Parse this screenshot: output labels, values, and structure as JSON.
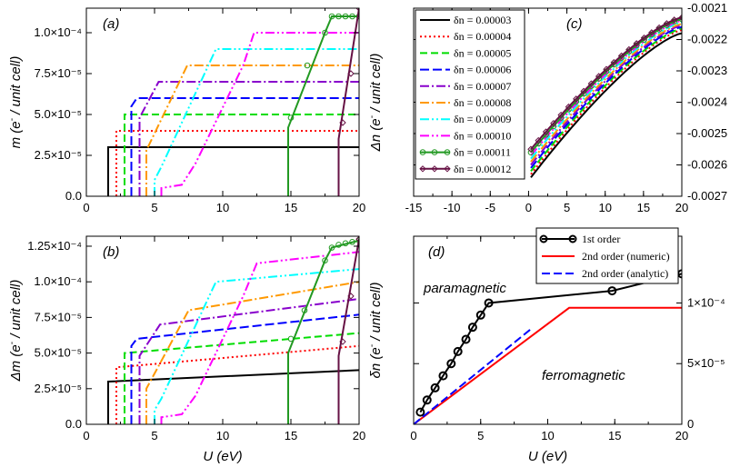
{
  "figure": {
    "series_colors": [
      "#000000",
      "#ff0000",
      "#00dd00",
      "#0000ff",
      "#8800cc",
      "#ff9900",
      "#00ffff",
      "#ff00ff",
      "#229922",
      "#661144"
    ],
    "series_dash": [
      "",
      "2,3",
      "8,4",
      "10,4",
      "10,3,2,3",
      "10,3,2,3",
      "10,3,2,3,2,3",
      "10,3,2,3,2,3",
      "",
      ""
    ]
  },
  "chart_data": [
    {
      "id": "a",
      "type": "line",
      "panel_label": "(a)",
      "xlabel": "",
      "ylabel_main": "m",
      "ylabel_unit": "(e",
      "ylabel_sup": "-",
      "ylabel_rest": " / unit cell)",
      "xlim": [
        0,
        20
      ],
      "ylim": [
        0,
        0.000115
      ],
      "xticks": [
        {
          "v": 0,
          "t": "0"
        },
        {
          "v": 5,
          "t": "5"
        },
        {
          "v": 10,
          "t": "10"
        },
        {
          "v": 15,
          "t": "15"
        },
        {
          "v": 20,
          "t": "20"
        }
      ],
      "yticks": [
        {
          "v": 0,
          "t": "0.0"
        },
        {
          "v": 2.5e-05,
          "t": "2.5×10⁻⁵"
        },
        {
          "v": 5e-05,
          "t": "5.0×10⁻⁵"
        },
        {
          "v": 7.5e-05,
          "t": "7.5×10⁻⁵"
        },
        {
          "v": 0.0001,
          "t": "1.0×10⁻⁴"
        }
      ],
      "series": [
        {
          "name": "δn = 0.00003",
          "points": [
            [
              1.6,
              0
            ],
            [
              1.6,
              3e-05
            ],
            [
              20,
              3e-05
            ]
          ]
        },
        {
          "name": "δn = 0.00004",
          "points": [
            [
              2.2,
              0
            ],
            [
              2.2,
              4e-05
            ],
            [
              20,
              4e-05
            ]
          ]
        },
        {
          "name": "δn = 0.00005",
          "points": [
            [
              2.8,
              0
            ],
            [
              2.8,
              5e-05
            ],
            [
              20,
              5e-05
            ]
          ]
        },
        {
          "name": "δn = 0.00006",
          "points": [
            [
              3.3,
              0
            ],
            [
              3.3,
              5.5e-05
            ],
            [
              3.7,
              6e-05
            ],
            [
              20,
              6e-05
            ]
          ]
        },
        {
          "name": "δn = 0.00007",
          "points": [
            [
              3.9,
              0
            ],
            [
              3.9,
              4.8e-05
            ],
            [
              5.3,
              7e-05
            ],
            [
              20,
              7e-05
            ]
          ]
        },
        {
          "name": "δn = 0.00008",
          "points": [
            [
              4.4,
              0
            ],
            [
              4.4,
              2.8e-05
            ],
            [
              7.4,
              8e-05
            ],
            [
              20,
              8e-05
            ]
          ]
        },
        {
          "name": "δn = 0.00009",
          "points": [
            [
              5.0,
              0
            ],
            [
              5.0,
              1e-05
            ],
            [
              5.5,
              1.8e-05
            ],
            [
              9.5,
              9e-05
            ],
            [
              20,
              9e-05
            ]
          ]
        },
        {
          "name": "δn = 0.00010",
          "points": [
            [
              5.5,
              0
            ],
            [
              5.5,
              5e-06
            ],
            [
              7.0,
              7e-06
            ],
            [
              8.0,
              2e-05
            ],
            [
              11.5,
              8e-05
            ],
            [
              12.3,
              0.0001
            ],
            [
              20,
              0.0001
            ]
          ]
        },
        {
          "name": "δn = 0.00011",
          "marker": "circle",
          "markers": [
            [
              15,
              4.8e-05
            ],
            [
              16.2,
              8e-05
            ],
            [
              17.5,
              0.0001
            ],
            [
              18,
              0.00011
            ],
            [
              18.5,
              0.00011
            ],
            [
              19,
              0.00011
            ],
            [
              19.5,
              0.00011
            ],
            [
              20,
              0.00011
            ]
          ],
          "points": [
            [
              14.8,
              0
            ],
            [
              14.8,
              4.2e-05
            ],
            [
              17.5,
              0.0001
            ],
            [
              18,
              0.00011
            ],
            [
              20,
              0.00011
            ]
          ]
        },
        {
          "name": "δn = 0.00012",
          "marker": "diamond",
          "markers": [
            [
              18.8,
              4.5e-05
            ],
            [
              19.4,
              7.5e-05
            ],
            [
              20,
              0.000115
            ]
          ],
          "points": [
            [
              18.5,
              0
            ],
            [
              18.5,
              3.5e-05
            ],
            [
              20,
              0.000115
            ]
          ]
        }
      ]
    },
    {
      "id": "b",
      "type": "line",
      "panel_label": "(b)",
      "xlabel": "U (eV)",
      "ylabel_main": "Δm",
      "ylabel_unit": "(e",
      "ylabel_sup": "-",
      "ylabel_rest": " / unit cell)",
      "xlim": [
        0,
        20
      ],
      "ylim": [
        0,
        0.000132
      ],
      "xticks": [
        {
          "v": 0,
          "t": "0"
        },
        {
          "v": 5,
          "t": "5"
        },
        {
          "v": 10,
          "t": "10"
        },
        {
          "v": 15,
          "t": "15"
        },
        {
          "v": 20,
          "t": "20"
        }
      ],
      "yticks": [
        {
          "v": 0,
          "t": "0.0"
        },
        {
          "v": 2.5e-05,
          "t": "2.5×10⁻⁵"
        },
        {
          "v": 5e-05,
          "t": "5.0×10⁻⁵"
        },
        {
          "v": 7.5e-05,
          "t": "7.5×10⁻⁵"
        },
        {
          "v": 0.0001,
          "t": "1.0×10⁻⁴"
        },
        {
          "v": 0.000125,
          "t": "1.25×10⁻⁴"
        }
      ],
      "series": [
        {
          "name": "δn = 0.00003",
          "points": [
            [
              1.6,
              0
            ],
            [
              1.6,
              3e-05
            ],
            [
              20,
              3.8e-05
            ]
          ]
        },
        {
          "name": "δn = 0.00004",
          "points": [
            [
              2.2,
              0
            ],
            [
              2.2,
              4e-05
            ],
            [
              20,
              5.5e-05
            ]
          ]
        },
        {
          "name": "δn = 0.00005",
          "points": [
            [
              2.8,
              0
            ],
            [
              2.8,
              5e-05
            ],
            [
              20,
              6.4e-05
            ]
          ]
        },
        {
          "name": "δn = 0.00006",
          "points": [
            [
              3.3,
              0
            ],
            [
              3.3,
              5.5e-05
            ],
            [
              3.7,
              6e-05
            ],
            [
              20,
              7.7e-05
            ]
          ]
        },
        {
          "name": "δn = 0.00007",
          "points": [
            [
              3.9,
              0
            ],
            [
              3.9,
              4.8e-05
            ],
            [
              5.4,
              7e-05
            ],
            [
              20,
              8.8e-05
            ]
          ]
        },
        {
          "name": "δn = 0.00008",
          "points": [
            [
              4.4,
              0
            ],
            [
              4.4,
              2.5e-05
            ],
            [
              7.5,
              8e-05
            ],
            [
              20,
              0.0001
            ]
          ]
        },
        {
          "name": "δn = 0.00009",
          "points": [
            [
              5.0,
              0
            ],
            [
              5.0,
              1e-05
            ],
            [
              5.5,
              1.8e-05
            ],
            [
              9.5,
              0.0001
            ],
            [
              20,
              0.000109
            ]
          ]
        },
        {
          "name": "δn = 0.00010",
          "points": [
            [
              5.5,
              0
            ],
            [
              5.5,
              5e-06
            ],
            [
              7.0,
              7e-06
            ],
            [
              8.0,
              2e-05
            ],
            [
              11.5,
              9e-05
            ],
            [
              12.5,
              0.000113
            ],
            [
              20,
              0.000121
            ]
          ]
        },
        {
          "name": "δn = 0.00011",
          "marker": "circle",
          "markers": [
            [
              15,
              6e-05
            ],
            [
              16,
              8e-05
            ],
            [
              17.5,
              0.000115
            ],
            [
              18,
              0.000124
            ],
            [
              18.5,
              0.000126
            ],
            [
              19,
              0.000127
            ],
            [
              19.5,
              0.000128
            ],
            [
              20,
              0.000129
            ]
          ],
          "points": [
            [
              14.8,
              0
            ],
            [
              14.8,
              5e-05
            ],
            [
              17.5,
              0.000115
            ],
            [
              18,
              0.000124
            ],
            [
              20,
              0.000129
            ]
          ]
        },
        {
          "name": "δn = 0.00012",
          "marker": "diamond",
          "markers": [
            [
              18.8,
              5.8e-05
            ],
            [
              19.4,
              9e-05
            ],
            [
              20,
              0.00013
            ]
          ],
          "points": [
            [
              18.5,
              0
            ],
            [
              18.5,
              4.8e-05
            ],
            [
              20,
              0.00013
            ]
          ]
        }
      ]
    },
    {
      "id": "c",
      "type": "line",
      "panel_label": "(c)",
      "xlabel": "",
      "ylabel_main": "Δn",
      "ylabel_unit": "(e",
      "ylabel_sup": "-",
      "ylabel_rest": " / unit cell)",
      "xlim": [
        -15,
        20
      ],
      "ylim": [
        -0.0027,
        -0.0021
      ],
      "xticks": [
        {
          "v": -15,
          "t": "-15"
        },
        {
          "v": -10,
          "t": "-10"
        },
        {
          "v": -5,
          "t": "-5"
        },
        {
          "v": 0,
          "t": "0"
        },
        {
          "v": 5,
          "t": "5"
        },
        {
          "v": 10,
          "t": "10"
        },
        {
          "v": 15,
          "t": "15"
        },
        {
          "v": 20,
          "t": "20"
        }
      ],
      "yticks": [
        {
          "v": -0.0027,
          "t": "-0.0027"
        },
        {
          "v": -0.0026,
          "t": "-0.0026"
        },
        {
          "v": -0.0025,
          "t": "-0.0025"
        },
        {
          "v": -0.0024,
          "t": "-0.0024"
        },
        {
          "v": -0.0023,
          "t": "-0.0023"
        },
        {
          "v": -0.0022,
          "t": "-0.0022"
        },
        {
          "v": -0.0021,
          "t": "-0.0021"
        }
      ],
      "series": [
        {
          "name": "δn = 0.00003",
          "start": -0.00264,
          "end": -0.00218
        },
        {
          "name": "δn = 0.00004",
          "start": -0.00263,
          "end": -0.00217
        },
        {
          "name": "δn = 0.00005",
          "start": -0.00262,
          "end": -0.002165
        },
        {
          "name": "δn = 0.00006",
          "start": -0.00261,
          "end": -0.00216
        },
        {
          "name": "δn = 0.00007",
          "start": -0.0026,
          "end": -0.002155
        },
        {
          "name": "δn = 0.00008",
          "start": -0.00259,
          "end": -0.00215
        },
        {
          "name": "δn = 0.00009",
          "start": -0.00258,
          "end": -0.002145
        },
        {
          "name": "δn = 0.00010",
          "start": -0.00257,
          "end": -0.00214
        },
        {
          "name": "δn = 0.00011",
          "marker": "circle",
          "start": -0.00256,
          "end": -0.002135
        },
        {
          "name": "δn = 0.00012",
          "marker": "diamond",
          "start": -0.00255,
          "end": -0.00213
        }
      ]
    },
    {
      "id": "d",
      "type": "line",
      "panel_label": "(d)",
      "xlabel": "U (eV)",
      "ylabel_main": "δn",
      "ylabel_unit": "(e",
      "ylabel_sup": "-",
      "ylabel_rest": " / unit cell)",
      "xlim": [
        0,
        20
      ],
      "ylim": [
        0,
        0.000155
      ],
      "xticks": [
        {
          "v": 0,
          "t": "0"
        },
        {
          "v": 5,
          "t": "5"
        },
        {
          "v": 10,
          "t": "10"
        },
        {
          "v": 15,
          "t": "15"
        },
        {
          "v": 20,
          "t": "20"
        }
      ],
      "yticks": [
        {
          "v": 0,
          "t": "0"
        },
        {
          "v": 5e-05,
          "t": "5×10⁻⁵"
        },
        {
          "v": 0.0001,
          "t": "1×10⁻⁴"
        }
      ],
      "annotations": [
        "paramagnetic",
        "ferromagnetic"
      ],
      "series": [
        {
          "name": "1st order",
          "color": "#000000",
          "dash": "",
          "marker": "circle",
          "points": [
            [
              0.5,
              1e-05
            ],
            [
              1.0,
              2e-05
            ],
            [
              1.6,
              3e-05
            ],
            [
              2.2,
              4e-05
            ],
            [
              2.8,
              5e-05
            ],
            [
              3.3,
              6e-05
            ],
            [
              3.9,
              7e-05
            ],
            [
              4.4,
              8e-05
            ],
            [
              5.0,
              9e-05
            ],
            [
              5.6,
              0.0001
            ],
            [
              14.8,
              0.00011
            ],
            [
              18.5,
              0.00012
            ],
            [
              20,
              0.000124
            ]
          ]
        },
        {
          "name": "2nd order (numeric)",
          "color": "#ff0000",
          "dash": "",
          "points": [
            [
              0,
              0
            ],
            [
              11.6,
              9.6e-05
            ],
            [
              20,
              9.6e-05
            ]
          ]
        },
        {
          "name": "2nd order (analytic)",
          "color": "#0000ff",
          "dash": "9,4",
          "points": [
            [
              0,
              0
            ],
            [
              8.8,
              7.9e-05
            ]
          ]
        }
      ]
    }
  ]
}
